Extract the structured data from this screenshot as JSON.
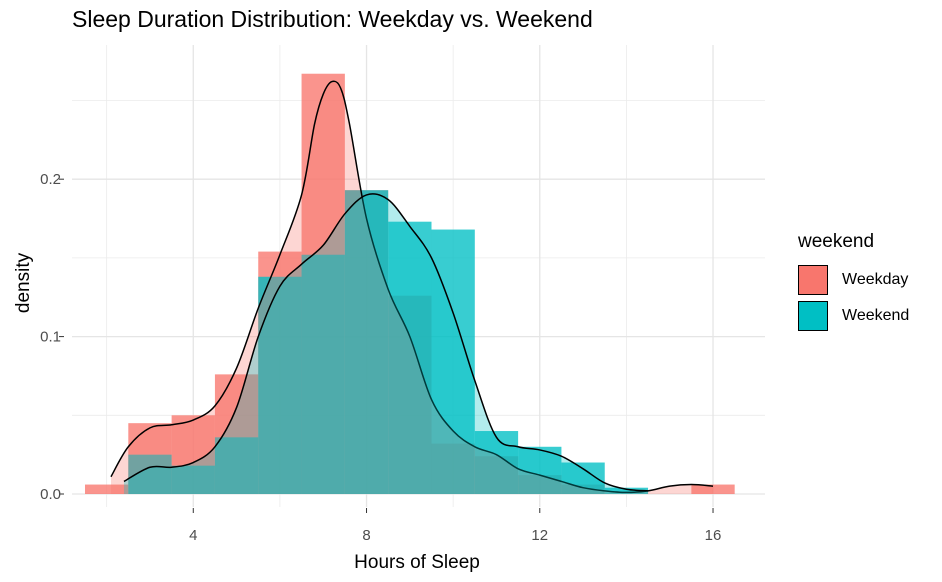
{
  "chart_data": {
    "type": "histogram",
    "title": "Sleep Duration Distribution: Weekday vs. Weekend",
    "xlabel": "Hours of Sleep",
    "ylabel": "density",
    "xlim": [
      1.2,
      17.2
    ],
    "ylim": [
      0,
      0.27
    ],
    "xticks": [
      4,
      8,
      12,
      16
    ],
    "yticks": [
      0.0,
      0.1,
      0.2
    ],
    "ytick_labels": [
      "0.0",
      "0.1",
      "0.2"
    ],
    "grid": true,
    "legend": {
      "title": "weekend",
      "position": "right",
      "entries": [
        "Weekday",
        "Weekend"
      ]
    },
    "bin_width": 1,
    "series": [
      {
        "name": "Weekday",
        "color": "#F8766D",
        "bins": [
          {
            "x0": 1.5,
            "x1": 2.5,
            "y": 0.006
          },
          {
            "x0": 2.5,
            "x1": 3.5,
            "y": 0.045
          },
          {
            "x0": 3.5,
            "x1": 4.5,
            "y": 0.05
          },
          {
            "x0": 4.5,
            "x1": 5.5,
            "y": 0.076
          },
          {
            "x0": 5.5,
            "x1": 6.5,
            "y": 0.154
          },
          {
            "x0": 6.5,
            "x1": 7.5,
            "y": 0.267
          },
          {
            "x0": 7.5,
            "x1": 8.5,
            "y": 0.193
          },
          {
            "x0": 8.5,
            "x1": 9.5,
            "y": 0.126
          },
          {
            "x0": 9.5,
            "x1": 10.5,
            "y": 0.032
          },
          {
            "x0": 10.5,
            "x1": 11.5,
            "y": 0.024
          },
          {
            "x0": 11.5,
            "x1": 12.5,
            "y": 0.012
          },
          {
            "x0": 12.5,
            "x1": 13.5,
            "y": 0.006
          },
          {
            "x0": 15.5,
            "x1": 16.5,
            "y": 0.006
          }
        ],
        "density_curve": {
          "x": [
            2.1,
            2.5,
            3.0,
            3.5,
            4.0,
            4.5,
            5.0,
            5.5,
            6.0,
            6.5,
            6.8,
            7.0,
            7.2,
            7.4,
            7.6,
            8.0,
            8.5,
            9.0,
            9.5,
            10.0,
            10.5,
            11.0,
            11.5,
            12.0,
            12.5,
            13.0,
            13.5,
            14.0,
            14.5,
            15.0,
            15.5,
            16.0
          ],
          "y": [
            0.011,
            0.03,
            0.042,
            0.044,
            0.047,
            0.056,
            0.08,
            0.118,
            0.152,
            0.19,
            0.235,
            0.254,
            0.262,
            0.258,
            0.236,
            0.175,
            0.13,
            0.1,
            0.06,
            0.04,
            0.03,
            0.025,
            0.016,
            0.012,
            0.008,
            0.004,
            0.002,
            0.001,
            0.002,
            0.005,
            0.006,
            0.005
          ]
        }
      },
      {
        "name": "Weekend",
        "color": "#00BFC4",
        "bins": [
          {
            "x0": 2.5,
            "x1": 3.5,
            "y": 0.025
          },
          {
            "x0": 3.5,
            "x1": 4.5,
            "y": 0.018
          },
          {
            "x0": 4.5,
            "x1": 5.5,
            "y": 0.036
          },
          {
            "x0": 5.5,
            "x1": 6.5,
            "y": 0.138
          },
          {
            "x0": 6.5,
            "x1": 7.5,
            "y": 0.152
          },
          {
            "x0": 7.5,
            "x1": 8.5,
            "y": 0.193
          },
          {
            "x0": 8.5,
            "x1": 9.5,
            "y": 0.173
          },
          {
            "x0": 9.5,
            "x1": 10.5,
            "y": 0.168
          },
          {
            "x0": 10.5,
            "x1": 11.5,
            "y": 0.04
          },
          {
            "x0": 11.5,
            "x1": 12.5,
            "y": 0.03
          },
          {
            "x0": 12.5,
            "x1": 13.5,
            "y": 0.02
          },
          {
            "x0": 13.5,
            "x1": 14.5,
            "y": 0.004
          }
        ],
        "density_curve": {
          "x": [
            2.4,
            3.0,
            3.5,
            4.0,
            4.5,
            5.0,
            5.5,
            6.0,
            6.5,
            7.0,
            7.5,
            8.0,
            8.5,
            9.0,
            9.5,
            10.0,
            10.5,
            11.0,
            11.5,
            12.0,
            12.5,
            13.0,
            13.5,
            14.0,
            14.5
          ],
          "y": [
            0.008,
            0.017,
            0.017,
            0.02,
            0.03,
            0.055,
            0.1,
            0.132,
            0.146,
            0.158,
            0.178,
            0.19,
            0.187,
            0.17,
            0.15,
            0.115,
            0.072,
            0.036,
            0.03,
            0.028,
            0.024,
            0.016,
            0.007,
            0.003,
            0.002
          ]
        }
      }
    ]
  }
}
